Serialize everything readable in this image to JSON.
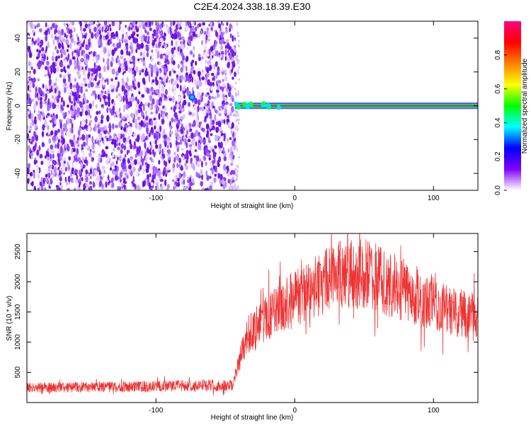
{
  "title": "C2E4.2024.338.18.39.E30",
  "chart_data": [
    {
      "type": "heatmap",
      "xlabel": "Height of straight line (km)",
      "ylabel": "Frequency (Hz)",
      "xlim": [
        -193,
        132
      ],
      "ylim": [
        -50,
        50
      ],
      "x_ticks": [
        -100,
        0,
        100
      ],
      "y_ticks": [
        -40,
        -20,
        0,
        20,
        40
      ],
      "noise_region_x": [
        -193,
        -43
      ],
      "tone": {
        "x_start": -43,
        "x_end": 132,
        "frequency": 0
      },
      "colorbar": {
        "label": "Normalized spectral amplitude",
        "ticks": [
          0.0,
          0.2,
          0.4,
          0.6,
          0.8
        ],
        "range": [
          0,
          1
        ],
        "colors": [
          "#ffffff",
          "#8000ff",
          "#0000ff",
          "#00ffff",
          "#00ff00",
          "#ffff00",
          "#ff8000",
          "#ff0000",
          "#ff0080"
        ]
      }
    },
    {
      "type": "line",
      "xlabel": "Height of straight line (km)",
      "ylabel": "SNR (10 * v/v)",
      "xlim": [
        -193,
        132
      ],
      "ylim": [
        0,
        2800
      ],
      "x_ticks": [
        -100,
        0,
        100
      ],
      "y_ticks": [
        500,
        1000,
        1500,
        2000,
        2500
      ],
      "color": "#ee3333",
      "envelope_x": [
        -193,
        -160,
        -120,
        -80,
        -45,
        -35,
        -25,
        -15,
        -5,
        10,
        25,
        40,
        55,
        70,
        85,
        100,
        115,
        132
      ],
      "envelope_y": [
        250,
        250,
        260,
        280,
        280,
        1100,
        1300,
        1500,
        1650,
        1850,
        2050,
        2150,
        2100,
        1950,
        1800,
        1650,
        1500,
        1400
      ]
    }
  ]
}
